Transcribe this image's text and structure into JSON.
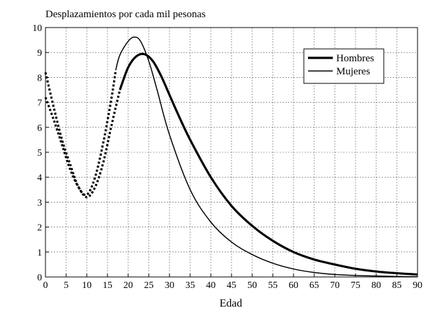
{
  "chart_data": {
    "type": "line",
    "title": "Desplazamientos por cada mil pesonas",
    "xlabel": "Edad",
    "ylabel": "",
    "xlim": [
      0,
      90
    ],
    "ylim": [
      0,
      10
    ],
    "x_ticks": [
      0,
      5,
      10,
      15,
      20,
      25,
      30,
      35,
      40,
      45,
      50,
      55,
      60,
      65,
      70,
      75,
      80,
      85,
      90
    ],
    "y_ticks": [
      0,
      1,
      2,
      3,
      4,
      5,
      6,
      7,
      8,
      9,
      10
    ],
    "grid": true,
    "legend_position": "top-right",
    "series": [
      {
        "name": "Hombres",
        "style": "thick",
        "dotted_segment": {
          "x": [
            0,
            2,
            4,
            6,
            8,
            10,
            12,
            14,
            16,
            18
          ],
          "y": [
            7.2,
            6.3,
            5.3,
            4.3,
            3.6,
            3.2,
            3.6,
            4.6,
            6.1,
            7.5
          ]
        },
        "solid_segment": {
          "x": [
            18,
            20,
            22,
            24,
            26,
            28,
            30,
            32,
            35,
            40,
            45,
            50,
            55,
            60,
            65,
            70,
            75,
            80,
            85,
            90
          ],
          "y": [
            7.5,
            8.4,
            8.85,
            8.93,
            8.65,
            8.05,
            7.3,
            6.55,
            5.5,
            4.0,
            2.85,
            2.05,
            1.45,
            1.0,
            0.7,
            0.5,
            0.33,
            0.22,
            0.15,
            0.1
          ]
        }
      },
      {
        "name": "Mujeres",
        "style": "thin",
        "dotted_segment": {
          "x": [
            0,
            2,
            4,
            6,
            8,
            10,
            12,
            14,
            16,
            17
          ],
          "y": [
            8.2,
            6.8,
            5.5,
            4.5,
            3.6,
            3.3,
            4.0,
            5.4,
            7.2,
            8.3
          ]
        },
        "solid_segment": {
          "x": [
            17,
            18,
            20,
            21.5,
            23,
            25,
            27,
            30,
            35,
            40,
            45,
            50,
            55,
            60,
            65,
            70,
            75,
            80,
            85,
            90
          ],
          "y": [
            8.3,
            8.9,
            9.45,
            9.62,
            9.45,
            8.65,
            7.5,
            5.7,
            3.5,
            2.2,
            1.4,
            0.9,
            0.55,
            0.32,
            0.18,
            0.1,
            0.06,
            0.04,
            0.02,
            0.01
          ]
        }
      }
    ]
  }
}
